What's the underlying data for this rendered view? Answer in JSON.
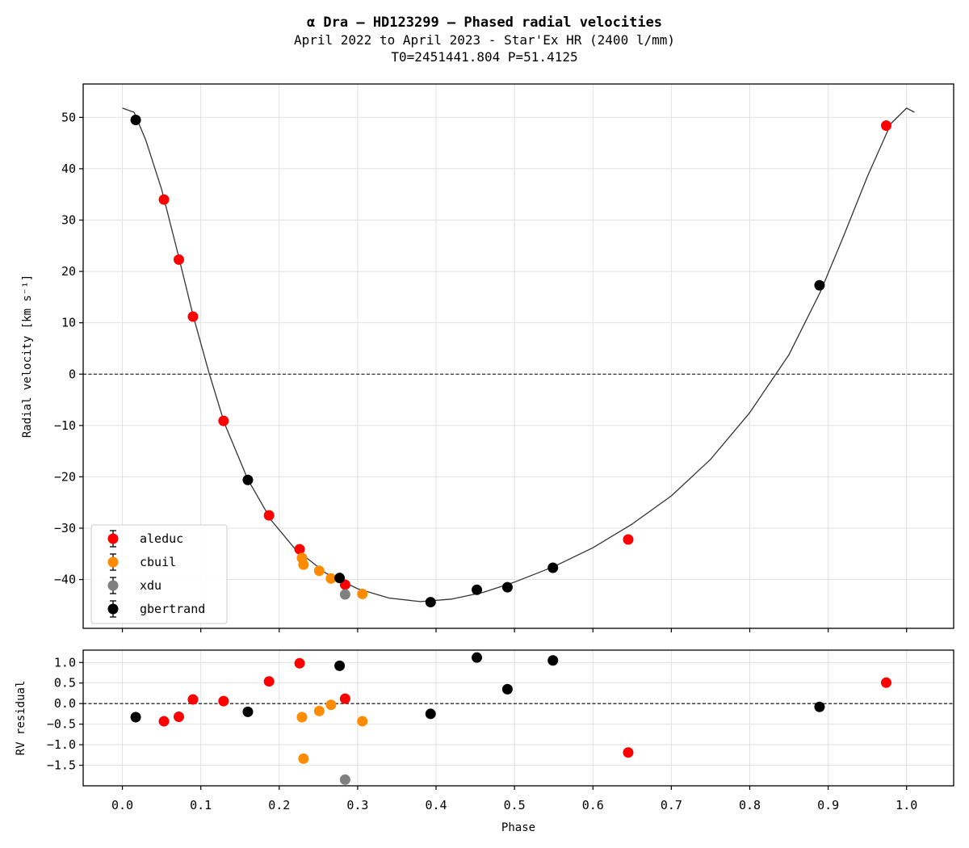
{
  "title": "α Dra — HD123299 — Phased radial velocities",
  "subtitle_1": "April 2022 to April 2023 - Star'Ex HR (2400 l/mm)",
  "subtitle_2": "T0=2451441.804 P=51.4125",
  "chart_data": [
    {
      "type": "scatter",
      "panel": "radial-velocity",
      "ylabel": "Radial velocity [km s⁻¹]",
      "xlabel": "",
      "xlim": [
        -0.05,
        1.06
      ],
      "ylim": [
        -49.5,
        56.5
      ],
      "xticks": [
        0.0,
        0.1,
        0.2,
        0.3,
        0.4,
        0.5,
        0.6,
        0.7,
        0.8,
        0.9,
        1.0
      ],
      "yticks": [
        50,
        40,
        30,
        20,
        10,
        0,
        -10,
        -20,
        -30,
        -40
      ],
      "ytick_labels": [
        "50",
        "40",
        "30",
        "20",
        "10",
        "0",
        "−10",
        "−20",
        "−30",
        "−40"
      ],
      "grid": true,
      "zero_line": true,
      "legend_position": "lower-left",
      "series": [
        {
          "name": "aleduc",
          "color": "#ff0000",
          "points": [
            [
              0.053,
              34.0
            ],
            [
              0.072,
              22.3
            ],
            [
              0.09,
              11.2
            ],
            [
              0.129,
              -9.1
            ],
            [
              0.187,
              -27.5
            ],
            [
              0.226,
              -34.1
            ],
            [
              0.284,
              -41.0
            ],
            [
              0.645,
              -32.2
            ],
            [
              0.974,
              48.4
            ]
          ]
        },
        {
          "name": "cbuil",
          "color": "#ff8c00",
          "points": [
            [
              0.229,
              -35.8
            ],
            [
              0.231,
              -37.1
            ],
            [
              0.251,
              -38.3
            ],
            [
              0.266,
              -39.8
            ],
            [
              0.306,
              -42.8
            ]
          ]
        },
        {
          "name": "xdu",
          "color": "#808080",
          "points": [
            [
              0.284,
              -42.9
            ]
          ]
        },
        {
          "name": "gbertrand",
          "color": "#000000",
          "points": [
            [
              0.017,
              49.5
            ],
            [
              0.16,
              -20.6
            ],
            [
              0.277,
              -39.7
            ],
            [
              0.393,
              -44.4
            ],
            [
              0.452,
              -42.0
            ],
            [
              0.491,
              -41.5
            ],
            [
              0.549,
              -37.7
            ],
            [
              0.889,
              17.3
            ]
          ]
        }
      ],
      "model_curve": {
        "color": "#333333",
        "points": [
          [
            0.0,
            51.8
          ],
          [
            0.015,
            51.0
          ],
          [
            0.03,
            45.5
          ],
          [
            0.05,
            36.0
          ],
          [
            0.07,
            24.0
          ],
          [
            0.09,
            11.5
          ],
          [
            0.11,
            0.5
          ],
          [
            0.13,
            -9.5
          ],
          [
            0.16,
            -20.5
          ],
          [
            0.19,
            -28.5
          ],
          [
            0.22,
            -34.0
          ],
          [
            0.26,
            -38.8
          ],
          [
            0.3,
            -41.8
          ],
          [
            0.34,
            -43.6
          ],
          [
            0.38,
            -44.3
          ],
          [
            0.42,
            -43.8
          ],
          [
            0.46,
            -42.5
          ],
          [
            0.5,
            -40.5
          ],
          [
            0.55,
            -37.5
          ],
          [
            0.6,
            -33.8
          ],
          [
            0.65,
            -29.2
          ],
          [
            0.7,
            -23.7
          ],
          [
            0.75,
            -16.6
          ],
          [
            0.8,
            -7.5
          ],
          [
            0.85,
            3.8
          ],
          [
            0.89,
            16.0
          ],
          [
            0.92,
            27.0
          ],
          [
            0.95,
            38.5
          ],
          [
            0.98,
            48.8
          ],
          [
            1.0,
            51.8
          ],
          [
            1.01,
            51.0
          ]
        ]
      }
    },
    {
      "type": "scatter",
      "panel": "residuals",
      "ylabel": "RV residual",
      "xlabel": "Phase",
      "xlim": [
        -0.05,
        1.06
      ],
      "ylim": [
        -2.0,
        1.3
      ],
      "xticks": [
        0.0,
        0.1,
        0.2,
        0.3,
        0.4,
        0.5,
        0.6,
        0.7,
        0.8,
        0.9,
        1.0
      ],
      "xtick_labels": [
        "0.0",
        "0.1",
        "0.2",
        "0.3",
        "0.4",
        "0.5",
        "0.6",
        "0.7",
        "0.8",
        "0.9",
        "1.0"
      ],
      "yticks": [
        1.0,
        0.5,
        0.0,
        -0.5,
        -1.0,
        -1.5
      ],
      "ytick_labels": [
        "1.0",
        "0.5",
        "0.0",
        "−0.5",
        "−1.0",
        "−1.5"
      ],
      "grid": true,
      "zero_line": true,
      "series": [
        {
          "name": "aleduc",
          "color": "#ff0000",
          "points": [
            [
              0.053,
              -0.43
            ],
            [
              0.072,
              -0.32
            ],
            [
              0.09,
              0.1
            ],
            [
              0.129,
              0.06
            ],
            [
              0.187,
              0.54
            ],
            [
              0.226,
              0.98
            ],
            [
              0.284,
              0.12
            ],
            [
              0.645,
              -1.19
            ],
            [
              0.974,
              0.51
            ]
          ]
        },
        {
          "name": "cbuil",
          "color": "#ff8c00",
          "points": [
            [
              0.229,
              -0.33
            ],
            [
              0.231,
              -1.34
            ],
            [
              0.251,
              -0.18
            ],
            [
              0.266,
              -0.03
            ],
            [
              0.306,
              -0.43
            ]
          ]
        },
        {
          "name": "xdu",
          "color": "#808080",
          "points": [
            [
              0.284,
              -1.85
            ]
          ]
        },
        {
          "name": "gbertrand",
          "color": "#000000",
          "points": [
            [
              0.017,
              -0.33
            ],
            [
              0.16,
              -0.2
            ],
            [
              0.277,
              0.92
            ],
            [
              0.393,
              -0.25
            ],
            [
              0.452,
              1.12
            ],
            [
              0.491,
              0.35
            ],
            [
              0.549,
              1.05
            ],
            [
              0.889,
              -0.08
            ]
          ]
        }
      ]
    }
  ]
}
